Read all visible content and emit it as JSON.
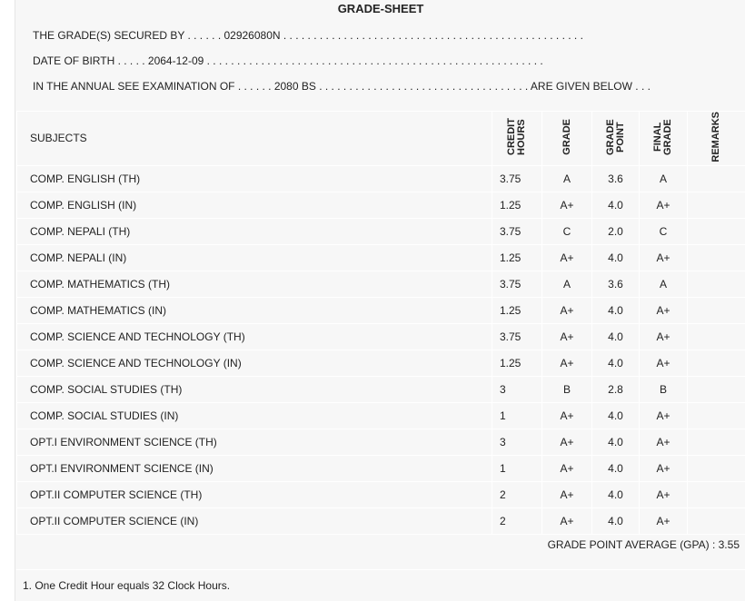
{
  "title": "GRADE-SHEET",
  "info": {
    "secured_by": "THE GRADE(S) SECURED BY . . . . . . 02926080N . . . . . . . . . . . . . . . . . . . . . . . . . . . . . . . . . . . . . . . . . . . . . . . . . .",
    "dob": "DATE OF BIRTH . . . . . 2064-12-09 . . . . . . . . . . . . . . . . . . . . . . . . . . . . . . . . . . . . . . . . . . . . . . . . . . . . . . . .",
    "exam": "IN THE ANNUAL SEE EXAMINATION OF . . . . . . 2080 BS . . . . . . . . . . . . . . . . . . . . . . . . . . . . . . . . . . . ARE GIVEN BELOW . . ."
  },
  "headers": {
    "subjects": "SUBJECTS",
    "credit": "CREDIT HOURS",
    "grade": "GRADE",
    "point": "GRADE POINT",
    "final": "FINAL GRADE",
    "remarks": "REMARKS"
  },
  "rows": [
    {
      "subject": "COMP. ENGLISH (TH)",
      "credit": "3.75",
      "grade": "A",
      "point": "3.6",
      "final": "A"
    },
    {
      "subject": "COMP. ENGLISH (IN)",
      "credit": "1.25",
      "grade": "A+",
      "point": "4.0",
      "final": "A+"
    },
    {
      "subject": "COMP. NEPALI (TH)",
      "credit": "3.75",
      "grade": "C",
      "point": "2.0",
      "final": "C"
    },
    {
      "subject": "COMP. NEPALI (IN)",
      "credit": "1.25",
      "grade": "A+",
      "point": "4.0",
      "final": "A+"
    },
    {
      "subject": "COMP. MATHEMATICS (TH)",
      "credit": "3.75",
      "grade": "A",
      "point": "3.6",
      "final": "A"
    },
    {
      "subject": "COMP. MATHEMATICS (IN)",
      "credit": "1.25",
      "grade": "A+",
      "point": "4.0",
      "final": "A+"
    },
    {
      "subject": "COMP. SCIENCE AND TECHNOLOGY (TH)",
      "credit": "3.75",
      "grade": "A+",
      "point": "4.0",
      "final": "A+"
    },
    {
      "subject": "COMP. SCIENCE AND TECHNOLOGY (IN)",
      "credit": "1.25",
      "grade": "A+",
      "point": "4.0",
      "final": "A+"
    },
    {
      "subject": "COMP. SOCIAL STUDIES (TH)",
      "credit": "3",
      "grade": "B",
      "point": "2.8",
      "final": "B"
    },
    {
      "subject": "COMP. SOCIAL STUDIES (IN)",
      "credit": "1",
      "grade": "A+",
      "point": "4.0",
      "final": "A+"
    },
    {
      "subject": "OPT.I ENVIRONMENT SCIENCE (TH)",
      "credit": "3",
      "grade": "A+",
      "point": "4.0",
      "final": "A+"
    },
    {
      "subject": "OPT.I ENVIRONMENT SCIENCE (IN)",
      "credit": "1",
      "grade": "A+",
      "point": "4.0",
      "final": "A+"
    },
    {
      "subject": "OPT.II COMPUTER SCIENCE (TH)",
      "credit": "2",
      "grade": "A+",
      "point": "4.0",
      "final": "A+"
    },
    {
      "subject": "OPT.II COMPUTER SCIENCE (IN)",
      "credit": "2",
      "grade": "A+",
      "point": "4.0",
      "final": "A+"
    }
  ],
  "gpa": "GRADE POINT AVERAGE (GPA) : 3.55",
  "footnote": "1. One Credit Hour equals 32 Clock Hours."
}
